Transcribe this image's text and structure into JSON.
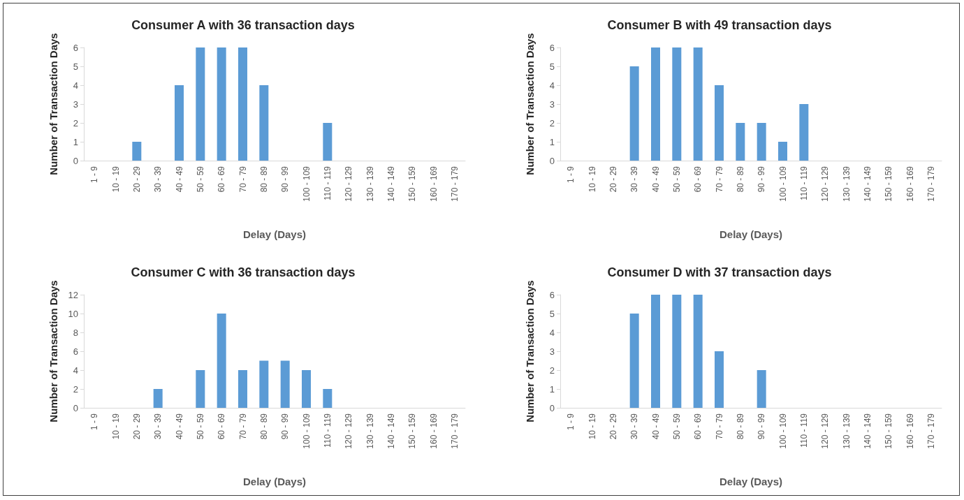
{
  "chart_data": [
    {
      "type": "bar",
      "title": "Consumer A with 36 transaction days",
      "xlabel": "Delay (Days)",
      "ylabel": "Number of Transaction Days",
      "categories": [
        "1 - 9",
        "10 - 19",
        "20 - 29",
        "30 - 39",
        "40 - 49",
        "50 - 59",
        "60 - 69",
        "70 - 79",
        "80 - 89",
        "90 - 99",
        "100 - 109",
        "110 - 119",
        "120 - 129",
        "130 - 139",
        "140 - 149",
        "150 - 159",
        "160 - 169",
        "170 - 179"
      ],
      "values": [
        0,
        0,
        1,
        0,
        4,
        6,
        6,
        6,
        4,
        0,
        0,
        2,
        0,
        0,
        0,
        0,
        0,
        0
      ],
      "color": "#5b9bd5",
      "ylim": [
        0,
        6
      ],
      "yticks": [
        0,
        1,
        2,
        3,
        4,
        5,
        6
      ],
      "grid": false
    },
    {
      "type": "bar",
      "title": "Consumer B with 49 transaction days",
      "xlabel": "Delay (Days)",
      "ylabel": "Number of Transaction Days",
      "categories": [
        "1 - 9",
        "10 - 19",
        "20 - 29",
        "30 - 39",
        "40 - 49",
        "50 - 59",
        "60 - 69",
        "70 - 79",
        "80 - 89",
        "90 - 99",
        "100 - 109",
        "110 - 119",
        "120 - 129",
        "130 - 139",
        "140 - 149",
        "150 - 159",
        "160 - 169",
        "170 - 179"
      ],
      "values": [
        0,
        0,
        0,
        5,
        6,
        6,
        6,
        4,
        2,
        2,
        1,
        3,
        0,
        0,
        0,
        0,
        0,
        0
      ],
      "color": "#5b9bd5",
      "ylim": [
        0,
        6
      ],
      "yticks": [
        0,
        1,
        2,
        3,
        4,
        5,
        6
      ],
      "grid": false
    },
    {
      "type": "bar",
      "title": "Consumer C with 36 transaction days",
      "xlabel": "Delay (Days)",
      "ylabel": "Number of Transaction Days",
      "categories": [
        "1 - 9",
        "10 - 19",
        "20 - 29",
        "30 - 39",
        "40 - 49",
        "50 - 59",
        "60 - 69",
        "70 - 79",
        "80 - 89",
        "90 - 99",
        "100 - 109",
        "110 - 119",
        "120 - 129",
        "130 - 139",
        "140 - 149",
        "150 - 159",
        "160 - 169",
        "170 - 179"
      ],
      "values": [
        0,
        0,
        0,
        2,
        0,
        4,
        10,
        4,
        5,
        5,
        4,
        2,
        0,
        0,
        0,
        0,
        0,
        0
      ],
      "color": "#5b9bd5",
      "ylim": [
        0,
        12
      ],
      "yticks": [
        0,
        2,
        4,
        6,
        8,
        10,
        12
      ],
      "grid": false
    },
    {
      "type": "bar",
      "title": "Consumer D with 37 transaction days",
      "xlabel": "Delay (Days)",
      "ylabel": "Number of Transaction Days",
      "categories": [
        "1 - 9",
        "10 - 19",
        "20 - 29",
        "30 - 39",
        "40 - 49",
        "50 - 59",
        "60 - 69",
        "70 - 79",
        "80 - 89",
        "90 - 99",
        "100 - 109",
        "110 - 119",
        "120 - 129",
        "130 - 139",
        "140 - 149",
        "150 - 159",
        "160 - 169",
        "170 - 179"
      ],
      "values": [
        0,
        0,
        0,
        5,
        6,
        6,
        6,
        3,
        0,
        2,
        0,
        0,
        0,
        0,
        0,
        0,
        0,
        0
      ],
      "color": "#5b9bd5",
      "ylim": [
        0,
        6
      ],
      "yticks": [
        0,
        1,
        2,
        3,
        4,
        5,
        6
      ],
      "grid": false
    }
  ]
}
